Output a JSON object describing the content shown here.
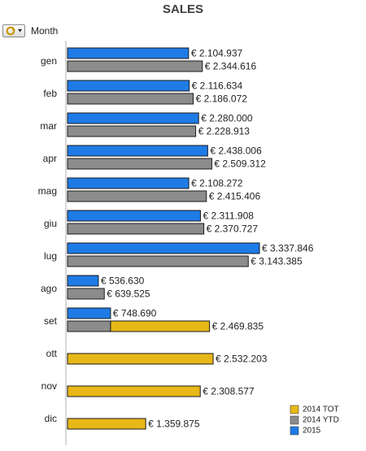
{
  "chart_data": {
    "type": "bar",
    "orientation": "horizontal",
    "title": "SALES",
    "dimension_label": "Month",
    "categories": [
      "gen",
      "feb",
      "mar",
      "apr",
      "mag",
      "giu",
      "lug",
      "ago",
      "set",
      "ott",
      "nov",
      "dic"
    ],
    "series": [
      {
        "name": "2015",
        "color": "#1e7be6",
        "values": [
          2104937,
          2116634,
          2280000,
          2438006,
          2108272,
          2311908,
          3337846,
          536630,
          748690,
          null,
          null,
          null
        ],
        "labels": [
          "€ 2.104.937",
          "€ 2.116.634",
          "€ 2.280.000",
          "€ 2.438.006",
          "€ 2.108.272",
          "€ 2.311.908",
          "€ 3.337.846",
          "€ 536.630",
          "€ 748.690",
          null,
          null,
          null
        ]
      },
      {
        "name": "2014 YTD",
        "color": "#8c8c8c",
        "values": [
          2344616,
          2186072,
          2228913,
          2509312,
          2415406,
          2370727,
          3143385,
          639525,
          748690,
          null,
          null,
          null
        ],
        "labels": [
          "€ 2.344.616",
          "€ 2.186.072",
          "€ 2.228.913",
          "€ 2.509.312",
          "€ 2.415.406",
          "€ 2.370.727",
          "€ 3.143.385",
          "€ 639.525",
          null,
          null,
          null,
          null
        ]
      },
      {
        "name": "2014 TOT",
        "color": "#e8b818",
        "values": [
          null,
          null,
          null,
          null,
          null,
          null,
          null,
          null,
          2469835,
          2532203,
          2308577,
          1359875
        ],
        "labels": [
          null,
          null,
          null,
          null,
          null,
          null,
          null,
          null,
          "€ 2.469.835",
          "€ 2.532.203",
          "€ 2.308.577",
          "€ 1.359.875"
        ]
      }
    ],
    "legend": {
      "position": "bottom-right",
      "items": [
        {
          "label": "2014 TOT",
          "color": "#e8b818"
        },
        {
          "label": "2014 YTD",
          "color": "#8c8c8c"
        },
        {
          "label": "2015",
          "color": "#1e7be6"
        }
      ]
    },
    "grid": false
  },
  "ui": {
    "cycle_icon": "cycle-group-icon"
  }
}
